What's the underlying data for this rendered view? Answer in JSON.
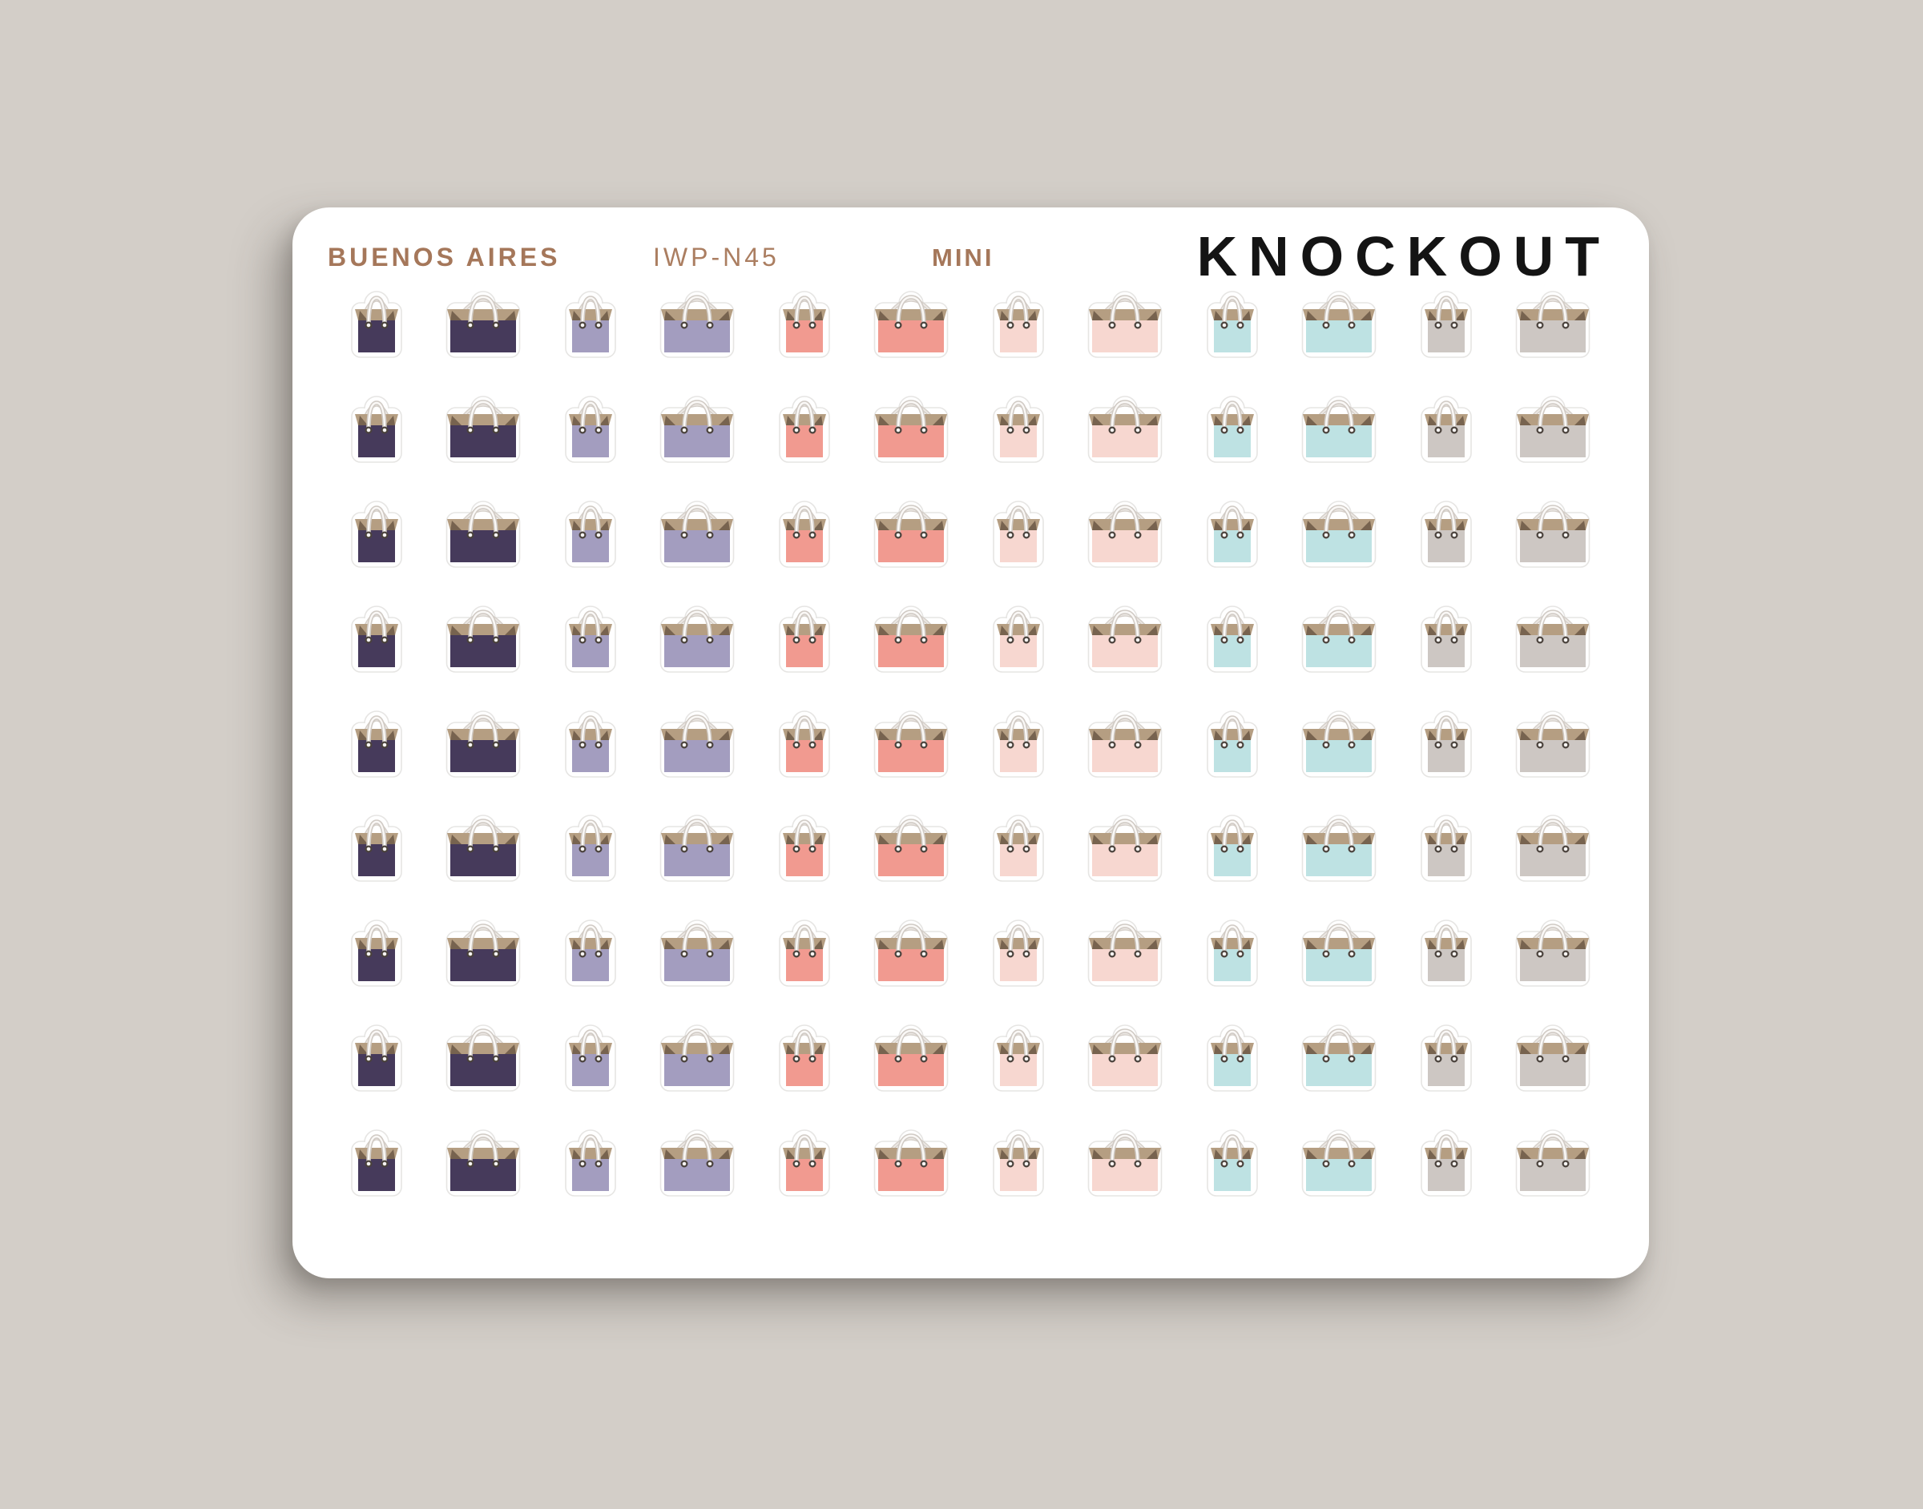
{
  "page": {
    "background_color": "#d3cec8",
    "card_color": "#ffffff"
  },
  "sheet": {
    "header": {
      "collection": "BUENOS AIRES",
      "sku": "IWP-N45",
      "size_label": "MINI",
      "brand": "KNOCKOUT"
    },
    "header_text_color": "#a5775a",
    "brand_text_color": "#141414",
    "sticker": {
      "icon": "shopping-bag-icon",
      "cuff_color": "#b59e82",
      "cuff_shadow_color": "#77634f",
      "handle_back_color": "#d5cfc9",
      "handle_front_color": "#d0cac4",
      "grommet_color": "#4a423c",
      "diecut_outline_color": "#e6e5e3"
    },
    "grid": {
      "rows": 9,
      "columns": [
        {
          "variant": "small",
          "color_name": "dark-plum",
          "color": "#463a5b"
        },
        {
          "variant": "large",
          "color_name": "dark-plum",
          "color": "#463a5b"
        },
        {
          "variant": "small",
          "color_name": "lavender",
          "color": "#a39dbf"
        },
        {
          "variant": "large",
          "color_name": "lavender",
          "color": "#a39dbf"
        },
        {
          "variant": "small",
          "color_name": "salmon",
          "color": "#f19a90"
        },
        {
          "variant": "large",
          "color_name": "salmon",
          "color": "#f19a90"
        },
        {
          "variant": "small",
          "color_name": "blush-pink",
          "color": "#f7d7d0"
        },
        {
          "variant": "large",
          "color_name": "blush-pink",
          "color": "#f7d7d0"
        },
        {
          "variant": "small",
          "color_name": "aqua",
          "color": "#bee2e3"
        },
        {
          "variant": "large",
          "color_name": "aqua",
          "color": "#bee2e3"
        },
        {
          "variant": "small",
          "color_name": "taupe-gray",
          "color": "#cdc7c3"
        },
        {
          "variant": "large",
          "color_name": "taupe-gray",
          "color": "#cdc7c3"
        }
      ]
    }
  }
}
